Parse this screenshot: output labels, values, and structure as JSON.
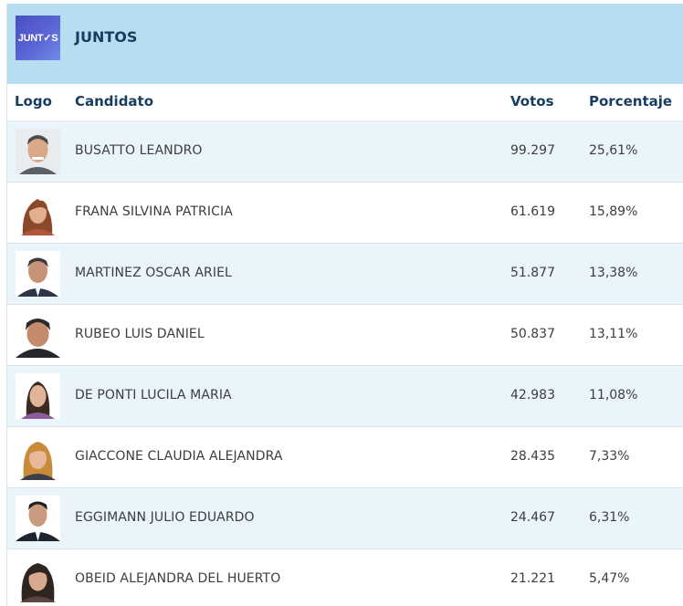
{
  "party": {
    "logo_text": "JUNT✓S",
    "name": "JUNTOS"
  },
  "columns": {
    "logo": "Logo",
    "candidate": "Candidato",
    "votes": "Votos",
    "percentage": "Porcentaje"
  },
  "candidates": [
    {
      "name": "BUSATTO LEANDRO",
      "votes": "99.297",
      "percentage": "25,61%"
    },
    {
      "name": "FRANA SILVINA PATRICIA",
      "votes": "61.619",
      "percentage": "15,89%"
    },
    {
      "name": "MARTINEZ OSCAR ARIEL",
      "votes": "51.877",
      "percentage": "13,38%"
    },
    {
      "name": "RUBEO LUIS DANIEL",
      "votes": "50.837",
      "percentage": "13,11%"
    },
    {
      "name": "DE PONTI LUCILA MARIA",
      "votes": "42.983",
      "percentage": "11,08%"
    },
    {
      "name": "GIACCONE CLAUDIA ALEJANDRA",
      "votes": "28.435",
      "percentage": "7,33%"
    },
    {
      "name": "EGGIMANN JULIO EDUARDO",
      "votes": "24.467",
      "percentage": "6,31%"
    },
    {
      "name": "OBEID ALEJANDRA DEL HUERTO",
      "votes": "21.221",
      "percentage": "5,47%"
    }
  ]
}
